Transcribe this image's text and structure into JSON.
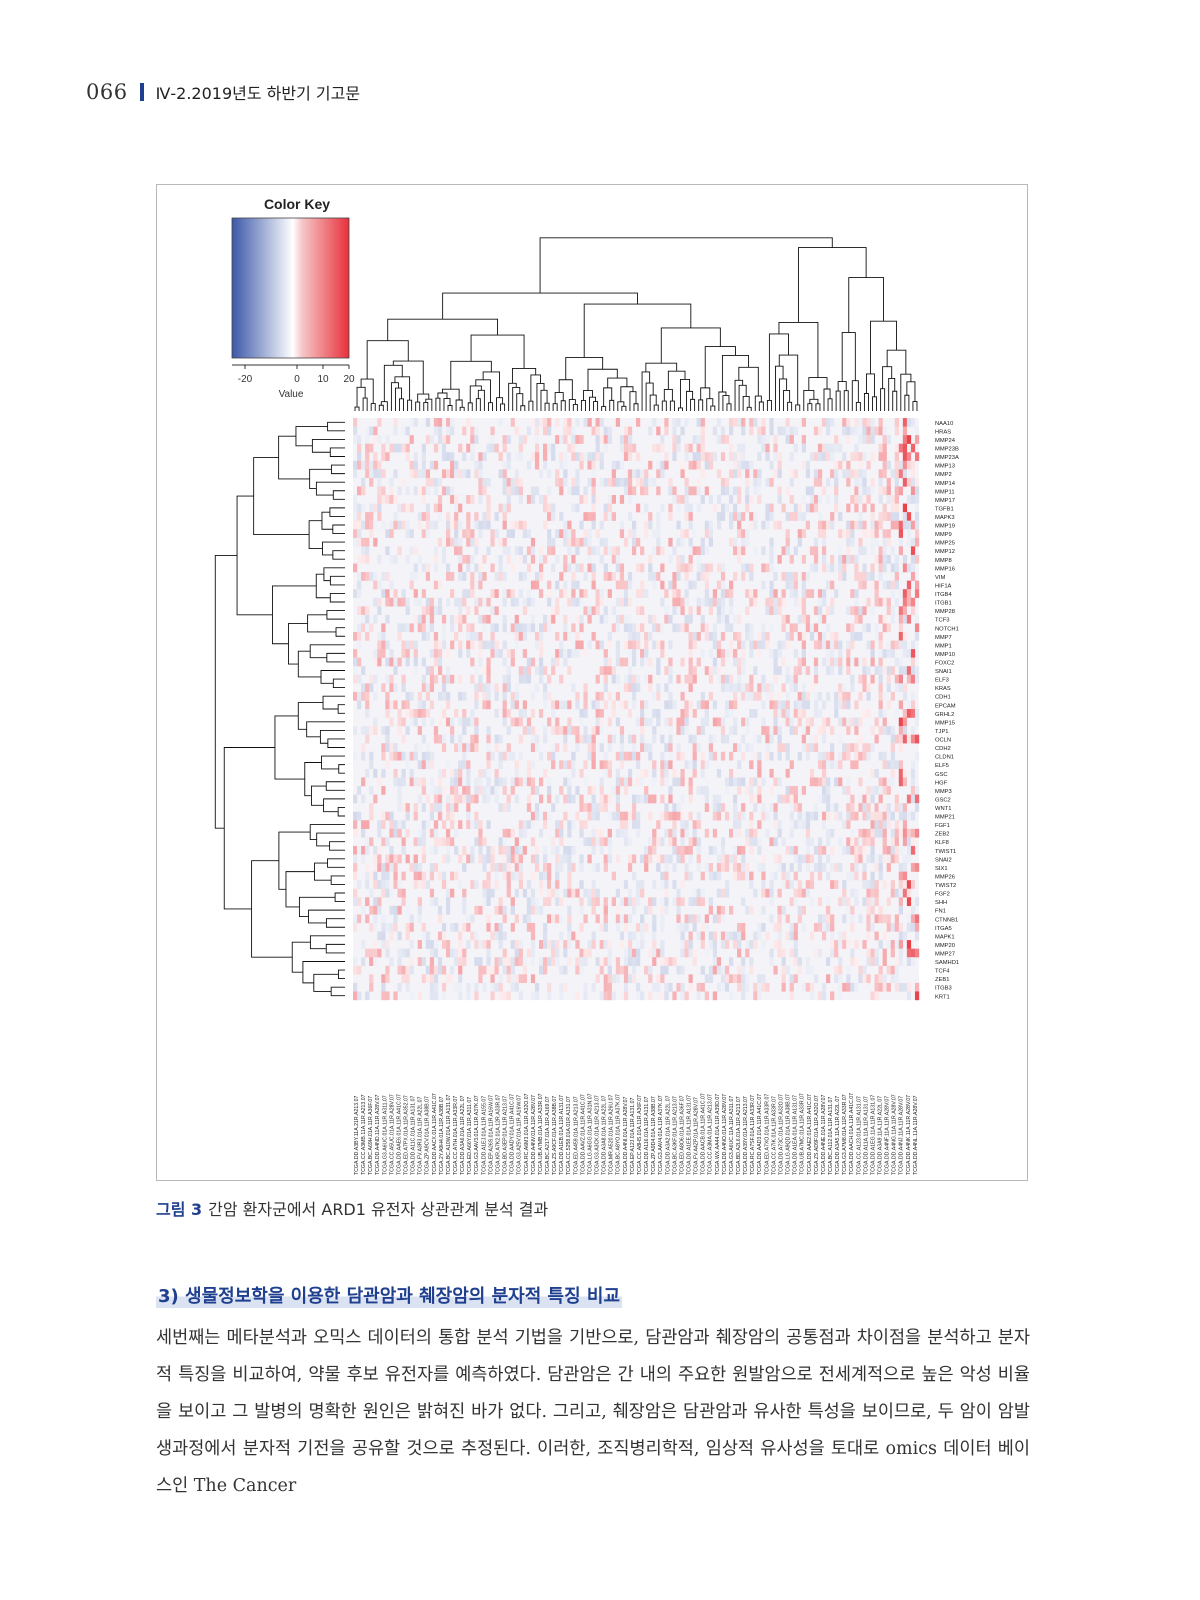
{
  "header": {
    "page_number": "066",
    "section": "Ⅳ-2.2019년도 하반기 기고문"
  },
  "figure": {
    "color_key": {
      "title": "Color Key",
      "ticks": [
        "-20",
        "0",
        "10",
        "20"
      ],
      "tick_values": [
        -20,
        0,
        10,
        20
      ],
      "range": [
        -25,
        20
      ],
      "axis_label": "Value",
      "low_color": "#3b57a8",
      "mid_color": "#ffffff",
      "high_color": "#e8303a"
    },
    "heatmap_bg": "#f4f4f8",
    "genes": [
      "NAA10",
      "HRAS",
      "MMP24",
      "MMP23B",
      "MMP23A",
      "MMP13",
      "MMP2",
      "MMP14",
      "MMP11",
      "MMP17",
      "TGFB1",
      "MAPK3",
      "MMP19",
      "MMP9",
      "MMP25",
      "MMP12",
      "MMP8",
      "MMP16",
      "VIM",
      "HIF1A",
      "ITGB4",
      "ITGB1",
      "MMP28",
      "TCF3",
      "NOTCH1",
      "MMP7",
      "MMP1",
      "MMP10",
      "FOXC2",
      "SNAI1",
      "ELF3",
      "KRAS",
      "CDH1",
      "EPCAM",
      "GRHL2",
      "MMP15",
      "TJP1",
      "OCLN",
      "CDH2",
      "CLDN1",
      "ELF5",
      "GSC",
      "HGF",
      "MMP3",
      "GSC2",
      "WNT1",
      "MMP21",
      "FGF1",
      "ZEB2",
      "KLF8",
      "TWIST1",
      "SNAI2",
      "SIX1",
      "MMP26",
      "TWIST2",
      "FGF2",
      "SHH",
      "FN1",
      "CTNNB1",
      "ITGA5",
      "MAPK1",
      "MMP20",
      "MMP27",
      "SAMHD1",
      "TCF4",
      "ZEB1",
      "ITGB3",
      "KRT1"
    ],
    "samples": [
      "TCGA.DD.A3BY.11A.21R.A213.07",
      "TCGA.CC.A3MB.11A.11R.A213.07",
      "TCGA.BC.A69H.01A.11R.A36F.07",
      "TCGA.DD.A4ND.11A.11R.A28V.07",
      "TCGA.G3.A6UC.01A.11R.A311.07",
      "TCGA.CC.A5UC.01A.11R.A28V.07",
      "TCGA.DD.AAE6.01A.11R.A41C.07",
      "TCGA.ED.A7PX.01A.11R.A352.07",
      "TCGA.DD.A11C.01A.11R.A131.07",
      "TCGA.FV.A3R3.01A.11R.A22L.07",
      "TCGA.ZP.A9CV.01A.11R.A38B.07",
      "TCGA.DD.AACX.01A.11R.A41C.07",
      "TCGA.2Y.A9H4.01A.11R.A38B.07",
      "TCGA.BC.A10W.01A.11R.A131.07",
      "TCGA.CC.A7IH.01A.11R.A33R.07",
      "TCGA.DD.A3A6.01A.11R.A22L.07",
      "TCGA.ED.A66Y.01A.11R.A311.07",
      "TCGA.G3.AAV3.01A.11R.A37K.07",
      "TCGA.DD.A1EJ.01A.11R.A155.07",
      "TCGA.EP.A26S.01A.11R.A16W.07",
      "TCGA.KR.A7K2.01A.12R.A33R.07",
      "TCGA.BD.A3EP.01A.11R.A213.07",
      "TCGA.DD.AADY.01A.11R.A41C.07",
      "TCGA.G3.A25V.01A.11R.A16W.07",
      "TCGA.RC.A6M3.01A.11R.A32O.07",
      "TCGA.DD.A4NV.01A.11R.A28V.07",
      "TCGA.UB.A7MB.01A.11R.A33R.07",
      "TCGA.BC.A217.01A.11R.A169.07",
      "TCGA.ZS.A9CF.01A.11R.A38B.07",
      "TCGA.DD.A1EB.01A.11R.A131.07",
      "TCGA.CC.5258.01A.01R.A131.07",
      "TCGA.ED.A459.01A.11R.A213.07",
      "TCGA.DD.AAVZ.01A.11R.A41C.07",
      "TCGA.LG.A6GG.01A.11R.A31N.07",
      "TCGA.G3.A3CK.01A.11R.A213.07",
      "TCGA.DD.A3A8.01A.11R.A22L.07",
      "TCGA.MR.A520.01A.11R.A26U.07",
      "TCGA.BC.A8YO.01A.11R.A37K.07",
      "TCGA.DD.A4NI.01A.11R.A28V.07",
      "TCGA.EP.A12J.01A.11R.A131.07",
      "TCGA.CC.A8HS.01A.11R.A36F.07",
      "TCGA.DD.A116.01A.11R.A131.07",
      "TCGA.ZP.A9D4.01A.11R.A38B.07",
      "TCGA.G3.AAV4.01A.11R.A37K.07",
      "TCGA.DD.A3A2.01A.11R.A22L.07",
      "TCGA.BC.A3KF.01A.11R.A213.07",
      "TCGA.ED.A8O6.01A.11R.A36F.07",
      "TCGA.DD.A1EE.01A.11R.A131.07",
      "TCGA.FV.A4ZP.01A.11R.A28V.07",
      "TCGA.DD.AACB.01A.11R.A41C.07",
      "TCGA.CC.A3MA.01A.11R.A213.07",
      "TCGA.WX.AA44.01A.11R.A39D.07",
      "TCGA.DD.A4NO.01A.11R.A28V.07",
      "TCGA.G3.A6UC.11A.11R.A311.07",
      "TCGA.BD.A2L6.01A.11R.A213.07",
      "TCGA.DD.A39Y.01A.11R.A213.07",
      "TCGA.RC.A7SF.01A.11R.A33R.07",
      "TCGA.DD.AAD3.01A.11R.A41C.07",
      "TCGA.ED.A7XO.01A.11R.A33R.07",
      "TCGA.CC.A7IK.01A.11R.A33R.07",
      "TCGA.DD.A73C.01A.11R.A32O.07",
      "TCGA.LG.A9QD.01A.11R.A38B.07",
      "TCGA.DD.A1EA.01A.11R.A131.07",
      "TCGA.UB.A7MC.01A.11R.A33R.07",
      "TCGA.DD.AAE2.01A.11R.A41C.07",
      "TCGA.ZS.AD9F.01A.11R.A32O.07",
      "TCGA.DD.A4NE.01A.11R.A28V.07",
      "TCGA.BC.A112.01A.11R.A131.07",
      "TCGA.DD.A3A5.11A.11R.A22L.07",
      "TCGA.G3.A7M8.01A.11R.A33R.07",
      "TCGA.DD.AACH.01A.11R.A41C.07",
      "TCGA.CC.A123.01A.11R.A131.07",
      "TCGA.DD.A11A.11A.11R.A131.07",
      "TCGA.DD.A1EG.11A.11R.A131.07",
      "TCGA.DD.A3A9.11A.11R.A22L.07",
      "TCGA.DD.A4NF.11A.11R.A28V.07",
      "TCGA.DD.A4NG.11A.11R.A28V.07",
      "TCGA.DD.A4NJ.11A.11R.A28V.07",
      "TCGA.DD.A4NK.11A.11R.A28V.07",
      "TCGA.DD.A4NL.11A.11R.A28V.07"
    ],
    "caption_label": "그림 3",
    "caption_text": "간암 환자군에서 ARD1 유전자 상관관계 분석 결과"
  },
  "section": {
    "heading": "3) 생물정보학을 이용한 담관암과 췌장암의 분자적 특징 비교",
    "paragraph": "세번째는 메타분석과 오믹스 데이터의 통합 분석 기법을 기반으로, 담관암과 췌장암의 공통점과 차이점을 분석하고 분자적 특징을 비교하여, 약물 후보 유전자를 예측하였다. 담관암은 간 내의 주요한 원발암으로 전세계적으로 높은 악성 비율을 보이고 그 발병의 명확한 원인은 밝혀진 바가 없다. 그리고, 췌장암은 담관암과 유사한 특성을 보이므로, 두 암이 암발생과정에서 분자적 기전을 공유할 것으로 추정된다. 이러한, 조직병리학적, 임상적 유사성을 토대로 omics 데이터 베이스인 The Cancer"
  }
}
